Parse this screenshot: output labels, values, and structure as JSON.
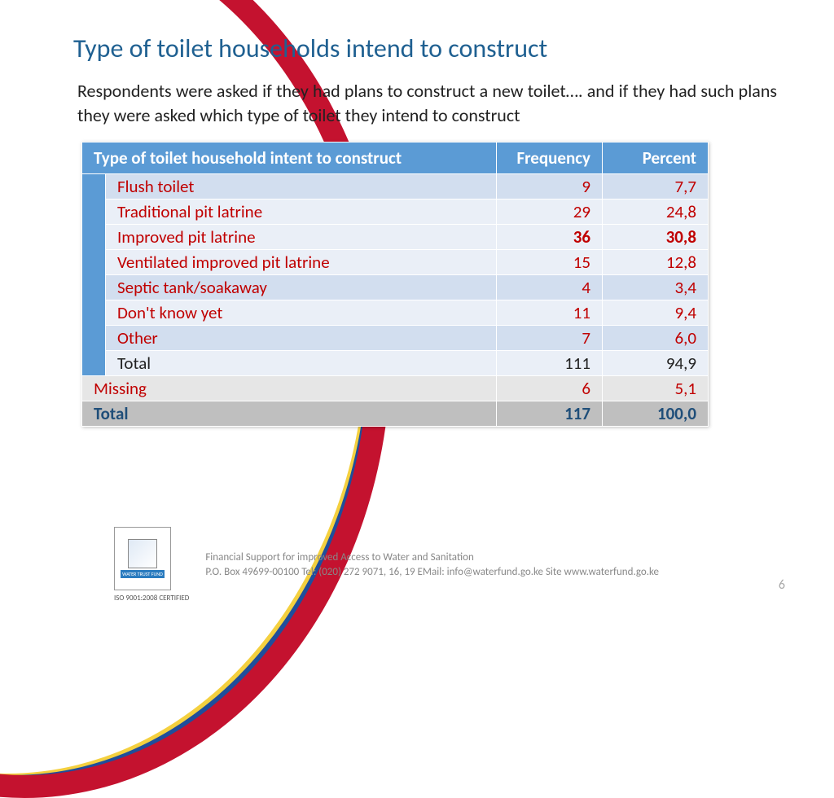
{
  "title": "Type of toilet households intend to construct",
  "intro": "Respondents were asked if they had plans to construct a new toilet…. and if they had such plans they were asked which type of toilet they intend to construct",
  "table": {
    "headers": {
      "c1": "Type of toilet household intent to construct",
      "c2": "Frequency",
      "c3": "Percent"
    },
    "rows": [
      {
        "label": "Flush toilet",
        "freq": "9",
        "pct": "7,7",
        "band": "odd"
      },
      {
        "label": "Traditional pit latrine",
        "freq": "29",
        "pct": "24,8",
        "band": "even"
      },
      {
        "label": "Improved pit latrine",
        "freq": "36",
        "pct": "30,8",
        "band": "hi"
      },
      {
        "label": "Ventilated improved pit latrine",
        "freq": "15",
        "pct": "12,8",
        "band": "even"
      },
      {
        "label": "Septic tank/soakaway",
        "freq": "4",
        "pct": "3,4",
        "band": "odd"
      },
      {
        "label": "Don't know yet",
        "freq": "11",
        "pct": "9,4",
        "band": "even"
      },
      {
        "label": "Other",
        "freq": "7",
        "pct": "6,0",
        "band": "odd"
      }
    ],
    "subtotal": {
      "label": "Total",
      "freq": "111",
      "pct": "94,9"
    },
    "missing": {
      "label": "Missing",
      "freq": "6",
      "pct": "5,1"
    },
    "grand": {
      "label": "Total",
      "freq": "117",
      "pct": "100,0"
    }
  },
  "footer": {
    "line1": "Financial Support for improved Access to Water and Sanitation",
    "line2": "P.O. Box 49699-00100 Tel: (020) 272 9071, 16, 19 EMail: info@waterfund.go.ke Site www.waterfund.go.ke",
    "iso": "ISO 9001:2008 CERTIFIED",
    "page": "6"
  },
  "colors": {
    "title": "#1f6091",
    "header_bg": "#5b9bd5",
    "row_text": "#c00000",
    "band_odd": "#d2deef",
    "band_even": "#eaeff7",
    "highlight": "#bfbfbf",
    "border_red": "#c4122f",
    "border_blue": "#1f4e9b",
    "border_yellow": "#f4d03f"
  }
}
